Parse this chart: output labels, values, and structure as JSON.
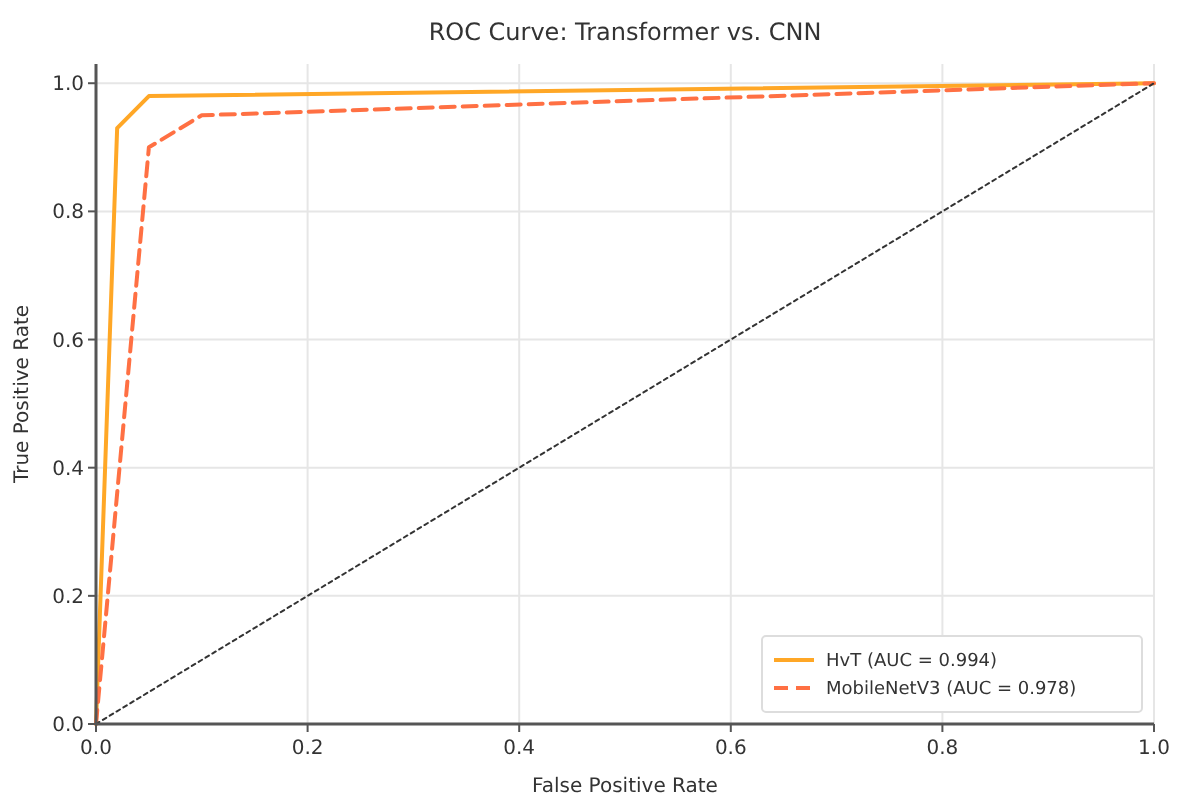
{
  "chart_data": {
    "type": "line",
    "title": "ROC Curve: Transformer vs. CNN",
    "xlabel": "False Positive Rate",
    "ylabel": "True Positive Rate",
    "xlim": [
      0,
      1
    ],
    "ylim": [
      0,
      1.03
    ],
    "xticks": [
      {
        "value": 0,
        "label": "0.0"
      },
      0.2,
      0.4,
      0.6,
      0.8,
      {
        "value": 1,
        "label": "1.0"
      }
    ],
    "yticks": [
      {
        "value": 0,
        "label": "0.0"
      },
      0.2,
      0.4,
      0.6,
      0.8,
      {
        "value": 1,
        "label": "1.0"
      }
    ],
    "grid": true,
    "legend": "bottom right",
    "marker": "none",
    "series": [
      {
        "name": "HvT (AUC = 0.994)",
        "color": "#ffa726",
        "line_style": "solid",
        "x": [
          0,
          0.02,
          0.05,
          1
        ],
        "values": [
          0,
          0.93,
          0.98,
          1
        ]
      },
      {
        "name": "MobileNetV3 (AUC = 0.978)",
        "color": "#ff7043",
        "line_style": "dashed",
        "x": [
          0,
          0.05,
          0.1,
          1
        ],
        "values": [
          0,
          0.9,
          0.95,
          1
        ]
      },
      {
        "color": "#333333",
        "line_style": "dotted",
        "x": [
          0,
          1
        ],
        "values": [
          0,
          1
        ]
      }
    ]
  }
}
